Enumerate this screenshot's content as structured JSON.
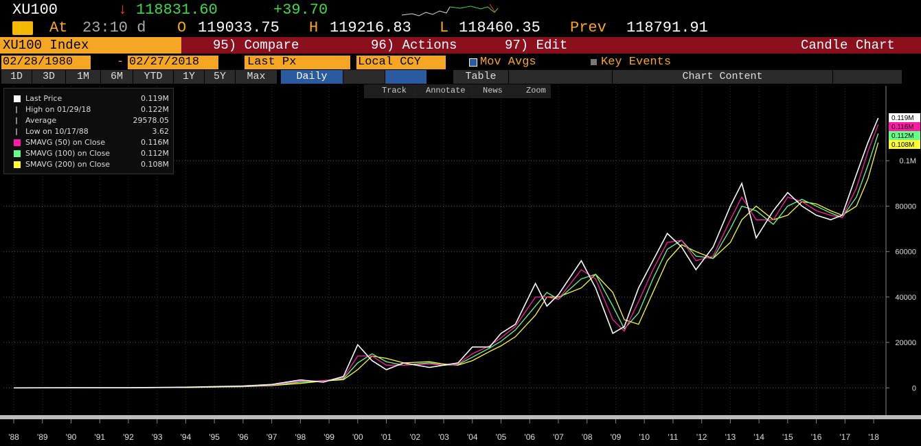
{
  "header": {
    "ticker": "XU100",
    "arrow": "↓",
    "last": "118831.60",
    "change": "+39.70",
    "at_label": "At",
    "time": "23:10 d",
    "open_label": "O",
    "open": "119033.75",
    "high_label": "H",
    "high": "119216.83",
    "low_label": "L",
    "low": "118460.35",
    "prev_label": "Prev",
    "prev": "118791.91"
  },
  "menu": {
    "security": "XU100 Index",
    "items": [
      "95) Compare",
      "96) Actions",
      "97) Edit"
    ],
    "view": "Candle Chart"
  },
  "controls": {
    "start": "02/28/1980",
    "dash": "-",
    "end": "02/27/2018",
    "field": "Last Px",
    "currency": "Local CCY",
    "mov_avgs": "Mov Avgs",
    "key_events": "Key Events"
  },
  "tabs": {
    "ranges": [
      "1D",
      "3D",
      "1M",
      "6M",
      "YTD",
      "1Y",
      "5Y",
      "Max"
    ],
    "frequency": "Daily",
    "table": "Table",
    "chart_content": "Chart Content"
  },
  "tools": [
    "Track",
    "Annotate",
    "News",
    "Zoom"
  ],
  "stats": [
    {
      "label": "High on 01/29/18",
      "value": "0.122M"
    },
    {
      "label": "Average",
      "value": "29578.05"
    },
    {
      "label": "Low on 10/17/88",
      "value": "3.62"
    }
  ],
  "chart_data": {
    "type": "line",
    "x": [
      1988,
      1990,
      1992,
      1994,
      1996,
      1997,
      1998,
      1998.8,
      1999.5,
      2000,
      2000.5,
      2001,
      2001.6,
      2002.5,
      2003,
      2003.5,
      2004,
      2004.6,
      2005,
      2005.5,
      2006.2,
      2006.6,
      2007,
      2007.8,
      2008.3,
      2008.9,
      2009.3,
      2009.8,
      2010.3,
      2010.8,
      2011.3,
      2011.8,
      2012.4,
      2013.0,
      2013.4,
      2013.9,
      2014.5,
      2015.0,
      2015.5,
      2016.0,
      2016.5,
      2016.9,
      2017.4,
      2017.8,
      2018.16
    ],
    "series": [
      {
        "name": "Last Price",
        "legend_value": "0.119M",
        "color": "#ffffff",
        "values": [
          5,
          40,
          50,
          300,
          800,
          1500,
          3500,
          2500,
          5000,
          19000,
          12000,
          8000,
          11000,
          9000,
          10000,
          11000,
          18000,
          18000,
          24000,
          28000,
          46000,
          36000,
          41000,
          56000,
          44000,
          24000,
          27000,
          44000,
          56000,
          68000,
          62000,
          52000,
          62000,
          80000,
          90000,
          66000,
          78000,
          86000,
          80000,
          76000,
          74000,
          76000,
          94000,
          108000,
          118832
        ]
      },
      {
        "name": "SMAVG (50) on Close",
        "legend_value": "0.116M",
        "color": "#ff1aa8",
        "values": [
          5,
          35,
          50,
          250,
          700,
          1300,
          3000,
          3000,
          4500,
          14000,
          14000,
          10000,
          10000,
          10500,
          10000,
          10500,
          15000,
          18500,
          22000,
          27000,
          40000,
          40000,
          39000,
          52000,
          48000,
          30000,
          25000,
          38000,
          52000,
          64000,
          65000,
          56000,
          58000,
          74000,
          84000,
          74000,
          74000,
          84000,
          82000,
          78000,
          76000,
          75000,
          88000,
          104000,
          116000
        ]
      },
      {
        "name": "SMAVG (100) on Close",
        "legend_value": "0.112M",
        "color": "#66ff88",
        "values": [
          5,
          30,
          48,
          200,
          600,
          1200,
          2600,
          3200,
          4000,
          11000,
          15000,
          11500,
          10000,
          11000,
          10000,
          10200,
          13500,
          17500,
          20500,
          25500,
          36000,
          42000,
          39000,
          48000,
          50000,
          36000,
          26000,
          33000,
          48000,
          61000,
          65000,
          58000,
          57000,
          70000,
          80000,
          78000,
          72000,
          80000,
          83000,
          80000,
          77000,
          75000,
          84000,
          98000,
          112000
        ]
      },
      {
        "name": "SMAVG (200) on Close",
        "legend_value": "0.108M",
        "color": "#ffff33",
        "values": [
          5,
          25,
          45,
          150,
          500,
          1000,
          2000,
          3000,
          3600,
          8000,
          14000,
          13000,
          11000,
          11500,
          10500,
          10000,
          12000,
          16000,
          18500,
          22500,
          32000,
          40000,
          40000,
          44000,
          50000,
          42000,
          30000,
          28000,
          42000,
          56000,
          63000,
          60000,
          57000,
          64000,
          74000,
          80000,
          74000,
          76000,
          82000,
          81000,
          78000,
          76000,
          80000,
          92000,
          108000
        ]
      }
    ],
    "xlim": [
      1987.64,
      2018.31
    ],
    "xticks": [
      {
        "value": 1988,
        "label": "'88"
      },
      {
        "value": 1989,
        "label": "'89"
      },
      {
        "value": 1990,
        "label": "'90"
      },
      {
        "value": 1991,
        "label": "'91"
      },
      {
        "value": 1992,
        "label": "'92"
      },
      {
        "value": 1993,
        "label": "'93"
      },
      {
        "value": 1994,
        "label": "'94"
      },
      {
        "value": 1995,
        "label": "'95"
      },
      {
        "value": 1996,
        "label": "'96"
      },
      {
        "value": 1997,
        "label": "'97"
      },
      {
        "value": 1998,
        "label": "'98"
      },
      {
        "value": 1999,
        "label": "'99"
      },
      {
        "value": 2000,
        "label": "'00"
      },
      {
        "value": 2001,
        "label": "'01"
      },
      {
        "value": 2002,
        "label": "'02"
      },
      {
        "value": 2003,
        "label": "'03"
      },
      {
        "value": 2004,
        "label": "'04"
      },
      {
        "value": 2005,
        "label": "'05"
      },
      {
        "value": 2006,
        "label": "'06"
      },
      {
        "value": 2007,
        "label": "'07"
      },
      {
        "value": 2008,
        "label": "'08"
      },
      {
        "value": 2009,
        "label": "'09"
      },
      {
        "value": 2010,
        "label": "'10"
      },
      {
        "value": 2011,
        "label": "'11"
      },
      {
        "value": 2012,
        "label": "'12"
      },
      {
        "value": 2013,
        "label": "'13"
      },
      {
        "value": 2014,
        "label": "'14"
      },
      {
        "value": 2015,
        "label": "'15"
      },
      {
        "value": 2016,
        "label": "'16"
      },
      {
        "value": 2017,
        "label": "'17"
      },
      {
        "value": 2018,
        "label": "'18"
      }
    ],
    "ylim": [
      -12000,
      133000
    ],
    "yticks": [
      0,
      20000,
      40000,
      60000,
      80000,
      {
        "value": 100000,
        "label": "0.1M"
      }
    ],
    "grid": true
  }
}
